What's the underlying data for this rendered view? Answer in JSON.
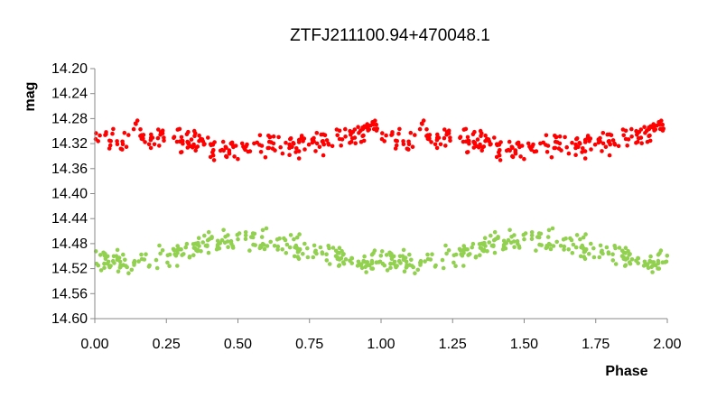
{
  "chart_data": {
    "type": "scatter",
    "title": "ZTFJ211100.94+470048.1",
    "xlabel": "Phase",
    "ylabel": "mag",
    "xlim": [
      0.0,
      2.0
    ],
    "ylim": [
      14.6,
      14.2
    ],
    "y_inverted": true,
    "grid": false,
    "legend": "none",
    "x_ticks": [
      "0.00",
      "0.25",
      "0.50",
      "0.75",
      "1.00",
      "1.25",
      "1.50",
      "1.75",
      "2.00"
    ],
    "y_ticks": [
      "14.20",
      "14.24",
      "14.28",
      "14.32",
      "14.36",
      "14.40",
      "14.44",
      "14.48",
      "14.52",
      "14.56",
      "14.60"
    ],
    "series": [
      {
        "color": "#ff0000",
        "model": "mean 14.318 + 0.012*sin(2*pi*(phase-0.16)) scatter ±0.03, points repeated at phase+1",
        "points": [
          [
            0.0,
            14.3
          ],
          [
            0.03,
            14.31
          ],
          [
            0.06,
            14.32
          ],
          [
            0.1,
            14.3
          ],
          [
            0.15,
            14.32
          ],
          [
            0.2,
            14.31
          ],
          [
            0.25,
            14.31
          ],
          [
            0.3,
            14.32
          ],
          [
            0.35,
            14.32
          ],
          [
            0.4,
            14.33
          ],
          [
            0.45,
            14.33
          ],
          [
            0.5,
            14.33
          ],
          [
            0.55,
            14.33
          ],
          [
            0.6,
            14.32
          ],
          [
            0.65,
            14.32
          ],
          [
            0.7,
            14.32
          ],
          [
            0.75,
            14.32
          ],
          [
            0.8,
            14.31
          ],
          [
            0.85,
            14.31
          ],
          [
            0.9,
            14.3
          ],
          [
            0.95,
            14.3
          ]
        ]
      },
      {
        "color": "#92d050",
        "model": "mean 14.498 + 0.020*sin(2*pi*(phase-0.21)) scatter ±0.03, points repeated at phase+1",
        "points": [
          [
            0.0,
            14.5
          ],
          [
            0.05,
            14.51
          ],
          [
            0.1,
            14.51
          ],
          [
            0.15,
            14.51
          ],
          [
            0.2,
            14.51
          ],
          [
            0.25,
            14.5
          ],
          [
            0.3,
            14.49
          ],
          [
            0.35,
            14.49
          ],
          [
            0.4,
            14.48
          ],
          [
            0.45,
            14.47
          ],
          [
            0.5,
            14.47
          ],
          [
            0.55,
            14.47
          ],
          [
            0.6,
            14.48
          ],
          [
            0.65,
            14.48
          ],
          [
            0.7,
            14.49
          ],
          [
            0.75,
            14.49
          ],
          [
            0.8,
            14.5
          ],
          [
            0.85,
            14.5
          ],
          [
            0.9,
            14.51
          ],
          [
            0.95,
            14.51
          ]
        ]
      }
    ]
  }
}
